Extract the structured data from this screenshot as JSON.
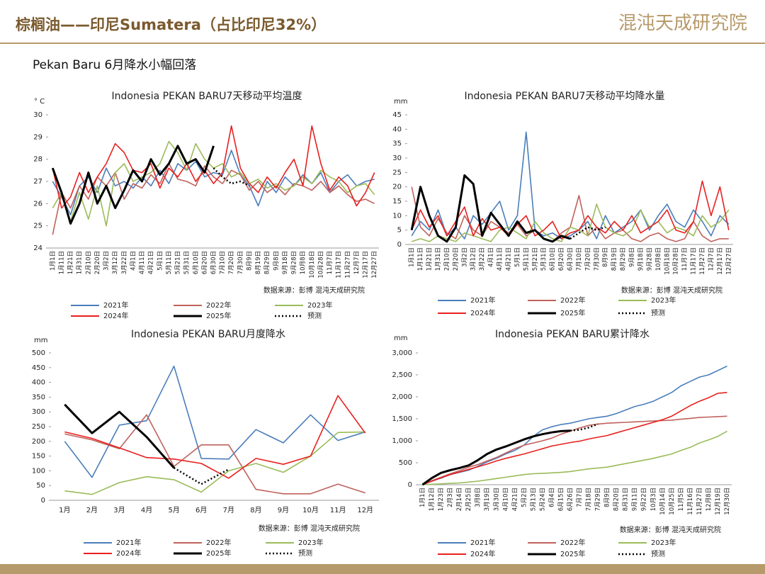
{
  "header": {
    "title": "棕榈油——印尼Sumatera（占比印尼32%）",
    "logo": "混沌天成研究院",
    "subtitle": "Pekan Baru 6月降水小幅回落"
  },
  "chart_data": [
    {
      "type": "line",
      "title": "Indonesia PEKAN BARU7天移动平均温度",
      "y_unit": "° C",
      "source": "数据来源：彭博  混沌天成研究院",
      "categories": [
        "1月1日",
        "1月11日",
        "1月21日",
        "1月31日",
        "2月10日",
        "2月20日",
        "3月2日",
        "3月12日",
        "3月22日",
        "4月1日",
        "4月11日",
        "4月21日",
        "5月1日",
        "5月11日",
        "5月21日",
        "5月31日",
        "6月10日",
        "6月20日",
        "6月30日",
        "7月10日",
        "7月20日",
        "7月30日",
        "8月9日",
        "8月19日",
        "8月29日",
        "9月8日",
        "9月18日",
        "9月28日",
        "10月8日",
        "10月18日",
        "10月28日",
        "11月7日",
        "11月17日",
        "11月27日",
        "12月7日",
        "12月17日",
        "12月27日"
      ],
      "ylim": [
        24,
        30
      ],
      "yticks": [
        24,
        25,
        26,
        27,
        28,
        29,
        30
      ],
      "series": [
        {
          "name": "2021年",
          "color": "#4a7ebb",
          "values": [
            27.0,
            26.3,
            25.5,
            26.8,
            27.2,
            26.5,
            27.6,
            26.8,
            27.0,
            26.7,
            27.2,
            26.8,
            27.5,
            26.9,
            27.8,
            27.5,
            27.9,
            27.2,
            27.4,
            27.3,
            28.4,
            27.3,
            26.8,
            25.9,
            27.0,
            26.5,
            27.2,
            26.8,
            27.3,
            26.9,
            27.4,
            26.5,
            27.0,
            27.3,
            26.8,
            27.0,
            27.1
          ]
        },
        {
          "name": "2022年",
          "color": "#c0625c",
          "values": [
            24.6,
            26.5,
            25.8,
            26.8,
            26.2,
            27.2,
            26.8,
            27.4,
            26.2,
            26.9,
            26.7,
            27.3,
            26.9,
            27.8,
            27.1,
            27.0,
            26.8,
            27.7,
            27.2,
            26.9,
            27.5,
            27.3,
            26.6,
            27.0,
            26.5,
            26.8,
            26.4,
            26.9,
            26.8,
            26.6,
            27.0,
            26.5,
            26.8,
            26.4,
            26.1,
            26.2,
            26.0
          ]
        },
        {
          "name": "2023年",
          "color": "#9bbb59",
          "values": [
            25.8,
            26.5,
            25.2,
            26.5,
            25.3,
            26.8,
            25.0,
            27.4,
            27.8,
            27.0,
            27.2,
            27.4,
            27.8,
            28.8,
            28.3,
            27.5,
            28.7,
            28.0,
            27.6,
            27.8,
            27.2,
            27.4,
            26.9,
            27.1,
            26.7,
            26.9,
            26.6,
            26.8,
            27.2,
            26.9,
            27.5,
            27.2,
            27.0,
            26.5,
            26.8,
            26.9,
            26.4
          ]
        },
        {
          "name": "2024年",
          "color": "#e8201f",
          "values": [
            27.6,
            25.8,
            26.3,
            27.4,
            26.5,
            27.2,
            27.8,
            28.7,
            28.3,
            27.5,
            27.4,
            27.8,
            26.7,
            27.6,
            27.2,
            27.8,
            27.0,
            27.5,
            26.9,
            27.4,
            29.5,
            27.6,
            26.9,
            26.5,
            27.2,
            26.7,
            27.4,
            28.0,
            26.8,
            29.5,
            27.8,
            26.6,
            27.2,
            26.8,
            25.9,
            26.5,
            27.4
          ]
        },
        {
          "name": "2025年",
          "color": "#000000",
          "line_width": 3,
          "values": [
            27.6,
            26.5,
            25.1,
            26.0,
            27.4,
            26.0,
            26.8,
            25.8,
            26.6,
            27.5,
            27.0,
            28.0,
            27.3,
            27.8,
            28.6,
            27.8,
            28.0,
            27.4,
            28.6,
            null,
            null,
            null,
            null,
            null,
            null,
            null,
            null,
            null,
            null,
            null,
            null,
            null,
            null,
            null,
            null,
            null,
            null
          ]
        },
        {
          "name": "预测",
          "color": "#000000",
          "dash": "dot",
          "values": [
            null,
            null,
            null,
            null,
            null,
            null,
            null,
            null,
            null,
            null,
            null,
            null,
            null,
            null,
            null,
            null,
            null,
            null,
            27.6,
            27.2,
            26.9,
            27.0,
            26.8,
            null,
            null,
            null,
            null,
            null,
            null,
            null,
            null,
            null,
            null,
            null,
            null,
            null,
            null
          ]
        }
      ]
    },
    {
      "type": "line",
      "title": "Indonesia PEKAN BARU7天移动平均降水量",
      "y_unit": "mm",
      "source": "数据来源：彭博  混沌天成研究院",
      "categories": [
        "1月1日",
        "1月11日",
        "1月21日",
        "1月31日",
        "2月10日",
        "2月20日",
        "3月2日",
        "3月12日",
        "3月22日",
        "4月1日",
        "4月11日",
        "4月21日",
        "5月1日",
        "5月11日",
        "5月21日",
        "5月31日",
        "6月10日",
        "6月20日",
        "6月30日",
        "7月10日",
        "7月20日",
        "7月30日",
        "8月9日",
        "8月19日",
        "8月29日",
        "9月8日",
        "9月18日",
        "9月28日",
        "10月8日",
        "10月18日",
        "10月28日",
        "11月7日",
        "11月17日",
        "11月27日",
        "12月7日",
        "12月17日",
        "12月27日"
      ],
      "ylim": [
        0,
        45
      ],
      "yticks": [
        0,
        5,
        10,
        15,
        20,
        25,
        30,
        35,
        40,
        45
      ],
      "series": [
        {
          "name": "2021年",
          "color": "#4a7ebb",
          "values": [
            3,
            8,
            5,
            12,
            3,
            6,
            2,
            10,
            7,
            11,
            15,
            5,
            10,
            39,
            5,
            3,
            4,
            2,
            3,
            5,
            8,
            2,
            10,
            4,
            6,
            8,
            12,
            5,
            10,
            14,
            8,
            6,
            12,
            8,
            3,
            10,
            7
          ]
        },
        {
          "name": "2022年",
          "color": "#c0625c",
          "values": [
            20,
            6,
            3,
            9,
            4,
            2,
            10,
            5,
            3,
            8,
            6,
            4,
            7,
            3,
            5,
            2,
            1,
            4,
            6,
            17,
            3,
            6,
            2,
            4,
            5,
            2,
            1,
            3,
            4,
            2,
            1,
            2,
            8,
            3,
            1,
            2,
            2
          ]
        },
        {
          "name": "2023年",
          "color": "#9bbb59",
          "values": [
            1,
            2,
            1,
            3,
            2,
            1,
            4,
            3,
            2,
            1,
            5,
            6,
            4,
            2,
            8,
            4,
            2,
            1,
            6,
            5,
            3,
            14,
            6,
            4,
            3,
            5,
            12,
            6,
            8,
            4,
            6,
            5,
            3,
            10,
            6,
            8,
            12
          ]
        },
        {
          "name": "2024年",
          "color": "#e8201f",
          "values": [
            5,
            12,
            6,
            10,
            3,
            8,
            13,
            3,
            9,
            5,
            6,
            3,
            7,
            10,
            3,
            5,
            8,
            2,
            4,
            5,
            10,
            6,
            4,
            8,
            5,
            10,
            4,
            6,
            8,
            12,
            5,
            4,
            8,
            22,
            10,
            20,
            5
          ]
        },
        {
          "name": "2025年",
          "color": "#000000",
          "line_width": 3,
          "values": [
            5,
            20,
            10,
            3,
            1,
            6,
            24,
            21,
            3,
            11,
            7,
            3,
            8,
            4,
            5,
            2,
            1,
            3,
            2,
            null,
            null,
            null,
            null,
            null,
            null,
            null,
            null,
            null,
            null,
            null,
            null,
            null,
            null,
            null,
            null,
            null,
            null
          ]
        },
        {
          "name": "预测",
          "color": "#000000",
          "dash": "dot",
          "values": [
            null,
            null,
            null,
            null,
            null,
            null,
            null,
            null,
            null,
            null,
            null,
            null,
            null,
            null,
            null,
            null,
            null,
            null,
            2,
            4,
            6,
            5,
            6,
            null,
            null,
            null,
            null,
            null,
            null,
            null,
            null,
            null,
            null,
            null,
            null,
            null,
            null
          ]
        }
      ]
    },
    {
      "type": "line",
      "title": "Indonesia PEKAN BARU月度降水",
      "y_unit": "mm",
      "source": "数据来源：彭博  混沌天成研究院",
      "categories": [
        "1月",
        "2月",
        "3月",
        "4月",
        "5月",
        "6月",
        "7月",
        "8月",
        "9月",
        "10月",
        "11月",
        "12月"
      ],
      "ylim": [
        0,
        500
      ],
      "yticks": [
        0,
        50,
        100,
        150,
        200,
        250,
        300,
        350,
        400,
        450,
        500
      ],
      "series": [
        {
          "name": "2021年",
          "color": "#4a7ebb",
          "values": [
            200,
            78,
            255,
            270,
            455,
            142,
            140,
            240,
            195,
            290,
            203,
            232
          ]
        },
        {
          "name": "2022年",
          "color": "#c0625c",
          "values": [
            225,
            205,
            175,
            290,
            115,
            188,
            188,
            37,
            22,
            22,
            55,
            25
          ]
        },
        {
          "name": "2023年",
          "color": "#9bbb59",
          "values": [
            32,
            20,
            60,
            80,
            70,
            28,
            100,
            125,
            95,
            150,
            230,
            232
          ]
        },
        {
          "name": "2024年",
          "color": "#e8201f",
          "values": [
            232,
            210,
            178,
            145,
            140,
            125,
            75,
            142,
            122,
            150,
            355,
            228
          ]
        },
        {
          "name": "2025年",
          "color": "#000000",
          "line_width": 3,
          "values": [
            325,
            228,
            300,
            215,
            110,
            null,
            null,
            null,
            null,
            null,
            null,
            null
          ]
        },
        {
          "name": "预测",
          "color": "#000000",
          "dash": "dot",
          "values": [
            null,
            null,
            null,
            null,
            110,
            55,
            105,
            null,
            null,
            null,
            null,
            null
          ]
        }
      ]
    },
    {
      "type": "line",
      "title": "Indonesia PEKAN BARU累计降水",
      "y_unit": "mm",
      "source": "数据来源：彭博  混沌天成研究院",
      "categories": [
        "1月1日",
        "1月12日",
        "1月23日",
        "2月3日",
        "2月14日",
        "2月25日",
        "3月8日",
        "3月19日",
        "3月30日",
        "4月10日",
        "4月21日",
        "5月2日",
        "5月13日",
        "5月24日",
        "6月4日",
        "6月15日",
        "6月26日",
        "7月7日",
        "7月18日",
        "7月29日",
        "8月9日",
        "8月20日",
        "8月31日",
        "9月11日",
        "9月22日",
        "10月3日",
        "10月14日",
        "10月25日",
        "11月5日",
        "11月16日",
        "11月27日",
        "12月8日",
        "12月19日",
        "12月30日"
      ],
      "ylim": [
        0,
        3000
      ],
      "yticks": [
        0,
        500,
        {
          "value": 1000,
          "label": "1,000"
        },
        {
          "value": 1500,
          "label": "1,500"
        },
        {
          "value": 2000,
          "label": "2,000"
        },
        {
          "value": 2500,
          "label": "2,500"
        },
        {
          "value": 3000,
          "label": "3,000"
        }
      ],
      "series": [
        {
          "name": "2021年",
          "color": "#4a7ebb",
          "values": [
            0,
            80,
            150,
            230,
            280,
            330,
            420,
            520,
            600,
            700,
            780,
            900,
            1100,
            1250,
            1320,
            1370,
            1400,
            1450,
            1500,
            1530,
            1560,
            1620,
            1700,
            1780,
            1830,
            1900,
            2000,
            2100,
            2250,
            2350,
            2450,
            2500,
            2600,
            2700
          ]
        },
        {
          "name": "2022年",
          "color": "#c0625c",
          "values": [
            0,
            90,
            170,
            250,
            320,
            400,
            460,
            540,
            620,
            720,
            820,
            900,
            950,
            1000,
            1060,
            1150,
            1220,
            1290,
            1350,
            1380,
            1400,
            1410,
            1420,
            1430,
            1440,
            1450,
            1460,
            1470,
            1490,
            1510,
            1530,
            1540,
            1550,
            1560
          ]
        },
        {
          "name": "2023年",
          "color": "#9bbb59",
          "values": [
            0,
            10,
            20,
            30,
            40,
            60,
            80,
            110,
            140,
            170,
            200,
            230,
            250,
            260,
            270,
            280,
            300,
            330,
            360,
            380,
            400,
            440,
            480,
            520,
            560,
            600,
            650,
            700,
            780,
            850,
            950,
            1020,
            1100,
            1220
          ]
        },
        {
          "name": "2024年",
          "color": "#e8201f",
          "values": [
            0,
            80,
            160,
            230,
            290,
            350,
            410,
            470,
            540,
            600,
            650,
            700,
            760,
            820,
            880,
            920,
            960,
            990,
            1040,
            1080,
            1120,
            1180,
            1240,
            1300,
            1360,
            1420,
            1480,
            1560,
            1680,
            1800,
            1900,
            1980,
            2080,
            2100
          ]
        },
        {
          "name": "2025年",
          "color": "#000000",
          "line_width": 3,
          "values": [
            0,
            150,
            270,
            330,
            380,
            440,
            560,
            700,
            800,
            870,
            950,
            1030,
            1100,
            1150,
            1190,
            1220,
            1230,
            null,
            null,
            null,
            null,
            null,
            null,
            null,
            null,
            null,
            null,
            null,
            null,
            null,
            null,
            null,
            null,
            null
          ]
        },
        {
          "name": "预测",
          "color": "#000000",
          "dash": "dot",
          "values": [
            null,
            null,
            null,
            null,
            null,
            null,
            null,
            null,
            null,
            null,
            null,
            null,
            null,
            null,
            null,
            null,
            1230,
            1250,
            1300,
            1380,
            null,
            null,
            null,
            null,
            null,
            null,
            null,
            null,
            null,
            null,
            null,
            null,
            null,
            null
          ]
        }
      ]
    }
  ]
}
